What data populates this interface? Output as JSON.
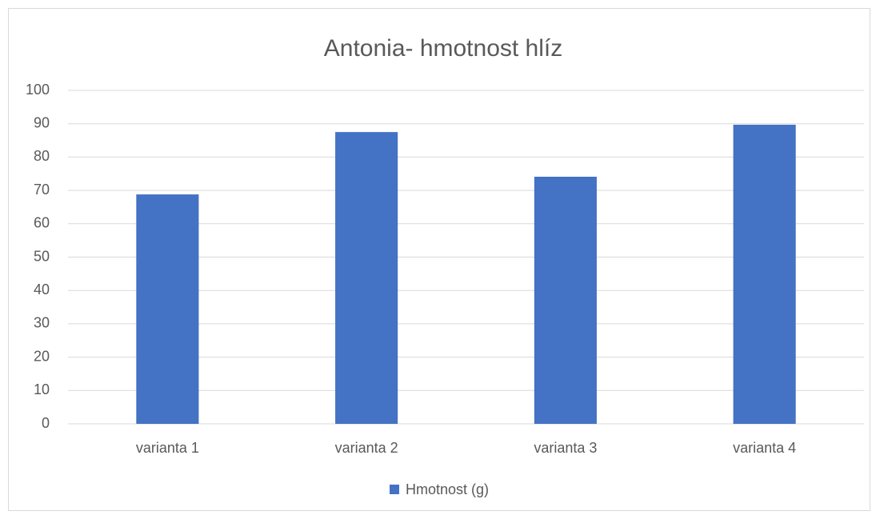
{
  "chart_data": {
    "type": "bar",
    "title": "Antonia- hmotnost hlíz",
    "categories": [
      "varianta 1",
      "varianta 2",
      "varianta 3",
      "varianta 4"
    ],
    "series": [
      {
        "name": "Hmotnost (g)",
        "color": "#4472c4",
        "values": [
          68.8,
          87.5,
          74.1,
          89.7
        ]
      }
    ],
    "ylim": [
      0,
      100
    ],
    "yticks": [
      0,
      10,
      20,
      30,
      40,
      50,
      60,
      70,
      80,
      90,
      100
    ],
    "grid": true,
    "legend": "bottom"
  }
}
